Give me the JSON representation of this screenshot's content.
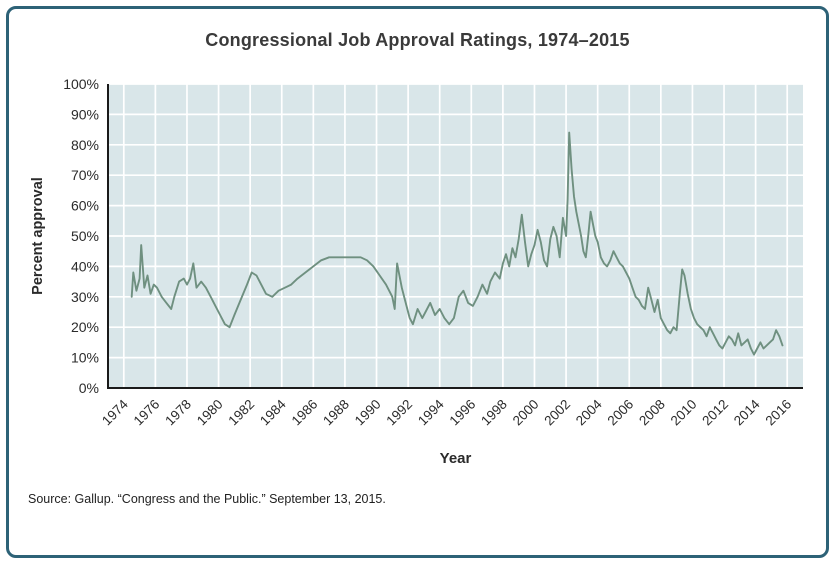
{
  "figure": {
    "border_color": "#2d6277",
    "plot_bg": "#d9e6e9",
    "grid_color": "#ffffff",
    "line_color": "#6f9080",
    "axis_color": "#1a1a1a",
    "source": "Source: Gallup. “Congress and the Public.” September 13, 2015."
  },
  "chart_data": {
    "type": "line",
    "title": "Congressional Job Approval Ratings, 1974–2015",
    "xlabel": "Year",
    "ylabel": "Percent approval",
    "xlim": [
      1973,
      2017
    ],
    "ylim": [
      0,
      100
    ],
    "grid": true,
    "legend_position": "none",
    "x_ticks": [
      1974,
      1976,
      1978,
      1980,
      1982,
      1984,
      1986,
      1988,
      1990,
      1992,
      1994,
      1996,
      1998,
      2000,
      2002,
      2004,
      2006,
      2008,
      2010,
      2012,
      2014,
      2016
    ],
    "x_tick_labels": [
      "1974",
      "1976",
      "1978",
      "1980",
      "1982",
      "1984",
      "1986",
      "1988",
      "1990",
      "1992",
      "1994",
      "1996",
      "1998",
      "2000",
      "2002",
      "2004",
      "2006",
      "2008",
      "2010",
      "2012",
      "2014",
      "2016"
    ],
    "y_ticks": [
      0,
      10,
      20,
      30,
      40,
      50,
      60,
      70,
      80,
      90,
      100
    ],
    "y_tick_labels": [
      "0%",
      "10%",
      "20%",
      "30%",
      "40%",
      "50%",
      "60%",
      "70%",
      "80%",
      "90%",
      "100%"
    ],
    "series": [
      {
        "name": "Congressional job approval",
        "points": [
          [
            1974.5,
            30
          ],
          [
            1974.6,
            38
          ],
          [
            1974.8,
            32
          ],
          [
            1975.0,
            36
          ],
          [
            1975.1,
            47
          ],
          [
            1975.3,
            33
          ],
          [
            1975.5,
            37
          ],
          [
            1975.7,
            31
          ],
          [
            1975.9,
            34
          ],
          [
            1976.1,
            33
          ],
          [
            1976.4,
            30
          ],
          [
            1976.7,
            28
          ],
          [
            1977.0,
            26
          ],
          [
            1977.2,
            30
          ],
          [
            1977.5,
            35
          ],
          [
            1977.8,
            36
          ],
          [
            1978.0,
            34
          ],
          [
            1978.2,
            36
          ],
          [
            1978.4,
            41
          ],
          [
            1978.6,
            33
          ],
          [
            1978.9,
            35
          ],
          [
            1979.2,
            33
          ],
          [
            1979.5,
            30
          ],
          [
            1979.8,
            27
          ],
          [
            1980.1,
            24
          ],
          [
            1980.4,
            21
          ],
          [
            1980.7,
            20
          ],
          [
            1981.0,
            24
          ],
          [
            1981.4,
            29
          ],
          [
            1981.8,
            34
          ],
          [
            1982.1,
            38
          ],
          [
            1982.4,
            37
          ],
          [
            1982.7,
            34
          ],
          [
            1983.0,
            31
          ],
          [
            1983.4,
            30
          ],
          [
            1983.8,
            32
          ],
          [
            1984.2,
            33
          ],
          [
            1984.6,
            34
          ],
          [
            1985.0,
            36
          ],
          [
            1985.5,
            38
          ],
          [
            1986.0,
            40
          ],
          [
            1986.5,
            42
          ],
          [
            1987.0,
            43
          ],
          [
            1987.5,
            43
          ],
          [
            1988.0,
            43
          ],
          [
            1988.5,
            43
          ],
          [
            1989.0,
            43
          ],
          [
            1989.4,
            42
          ],
          [
            1989.8,
            40
          ],
          [
            1990.2,
            37
          ],
          [
            1990.6,
            34
          ],
          [
            1991.0,
            30
          ],
          [
            1991.15,
            26
          ],
          [
            1991.3,
            41
          ],
          [
            1991.6,
            33
          ],
          [
            1991.9,
            27
          ],
          [
            1992.1,
            23
          ],
          [
            1992.3,
            21
          ],
          [
            1992.6,
            26
          ],
          [
            1992.9,
            23
          ],
          [
            1993.1,
            25
          ],
          [
            1993.4,
            28
          ],
          [
            1993.7,
            24
          ],
          [
            1994.0,
            26
          ],
          [
            1994.3,
            23
          ],
          [
            1994.6,
            21
          ],
          [
            1994.9,
            23
          ],
          [
            1995.2,
            30
          ],
          [
            1995.5,
            32
          ],
          [
            1995.8,
            28
          ],
          [
            1996.1,
            27
          ],
          [
            1996.4,
            30
          ],
          [
            1996.7,
            34
          ],
          [
            1997.0,
            31
          ],
          [
            1997.2,
            35
          ],
          [
            1997.5,
            38
          ],
          [
            1997.8,
            36
          ],
          [
            1998.0,
            41
          ],
          [
            1998.2,
            44
          ],
          [
            1998.4,
            40
          ],
          [
            1998.6,
            46
          ],
          [
            1998.8,
            43
          ],
          [
            1999.0,
            49
          ],
          [
            1999.2,
            57
          ],
          [
            1999.4,
            48
          ],
          [
            1999.6,
            40
          ],
          [
            1999.8,
            44
          ],
          [
            2000.0,
            47
          ],
          [
            2000.2,
            52
          ],
          [
            2000.4,
            48
          ],
          [
            2000.6,
            42
          ],
          [
            2000.8,
            40
          ],
          [
            2001.0,
            49
          ],
          [
            2001.2,
            53
          ],
          [
            2001.4,
            50
          ],
          [
            2001.6,
            43
          ],
          [
            2001.8,
            56
          ],
          [
            2002.0,
            50
          ],
          [
            2002.1,
            62
          ],
          [
            2002.2,
            84
          ],
          [
            2002.35,
            72
          ],
          [
            2002.5,
            63
          ],
          [
            2002.65,
            58
          ],
          [
            2002.8,
            54
          ],
          [
            2002.95,
            50
          ],
          [
            2003.1,
            45
          ],
          [
            2003.25,
            43
          ],
          [
            2003.4,
            50
          ],
          [
            2003.55,
            58
          ],
          [
            2003.7,
            54
          ],
          [
            2003.85,
            50
          ],
          [
            2004.0,
            48
          ],
          [
            2004.2,
            43
          ],
          [
            2004.4,
            41
          ],
          [
            2004.6,
            40
          ],
          [
            2004.8,
            42
          ],
          [
            2005.0,
            45
          ],
          [
            2005.2,
            43
          ],
          [
            2005.4,
            41
          ],
          [
            2005.6,
            40
          ],
          [
            2005.8,
            38
          ],
          [
            2006.0,
            36
          ],
          [
            2006.2,
            33
          ],
          [
            2006.4,
            30
          ],
          [
            2006.6,
            29
          ],
          [
            2006.8,
            27
          ],
          [
            2007.0,
            26
          ],
          [
            2007.2,
            33
          ],
          [
            2007.4,
            29
          ],
          [
            2007.6,
            25
          ],
          [
            2007.8,
            29
          ],
          [
            2008.0,
            23
          ],
          [
            2008.2,
            21
          ],
          [
            2008.4,
            19
          ],
          [
            2008.6,
            18
          ],
          [
            2008.8,
            20
          ],
          [
            2009.0,
            19
          ],
          [
            2009.2,
            31
          ],
          [
            2009.35,
            39
          ],
          [
            2009.5,
            37
          ],
          [
            2009.7,
            31
          ],
          [
            2009.9,
            26
          ],
          [
            2010.1,
            23
          ],
          [
            2010.3,
            21
          ],
          [
            2010.5,
            20
          ],
          [
            2010.7,
            19
          ],
          [
            2010.9,
            17
          ],
          [
            2011.1,
            20
          ],
          [
            2011.3,
            18
          ],
          [
            2011.5,
            16
          ],
          [
            2011.7,
            14
          ],
          [
            2011.9,
            13
          ],
          [
            2012.1,
            15
          ],
          [
            2012.3,
            17
          ],
          [
            2012.5,
            16
          ],
          [
            2012.7,
            14
          ],
          [
            2012.9,
            18
          ],
          [
            2013.1,
            14
          ],
          [
            2013.3,
            15
          ],
          [
            2013.5,
            16
          ],
          [
            2013.7,
            13
          ],
          [
            2013.9,
            11
          ],
          [
            2014.1,
            13
          ],
          [
            2014.3,
            15
          ],
          [
            2014.5,
            13
          ],
          [
            2014.7,
            14
          ],
          [
            2014.9,
            15
          ],
          [
            2015.1,
            16
          ],
          [
            2015.3,
            19
          ],
          [
            2015.5,
            17
          ],
          [
            2015.7,
            14
          ]
        ]
      }
    ]
  }
}
